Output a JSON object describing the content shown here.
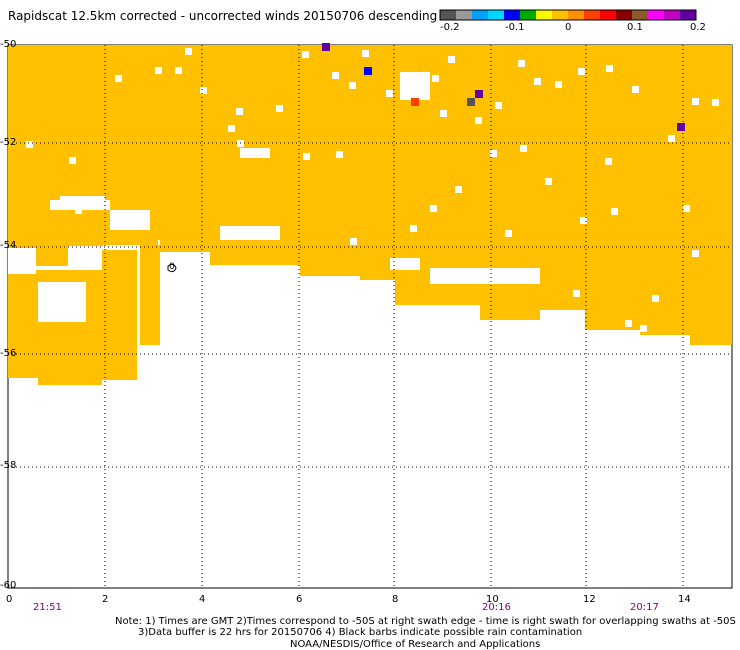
{
  "title": "Rapidscat 12.5km corrected - uncorrected winds 20150706 descending",
  "colorbar": {
    "colors": [
      "#555555",
      "#999999",
      "#00a0ff",
      "#00d8ff",
      "#0000ff",
      "#00aa00",
      "#f8f800",
      "#ffc000",
      "#ff9000",
      "#ff4000",
      "#ff0000",
      "#880000",
      "#8b5a2b",
      "#ff00ff",
      "#c000c0",
      "#6000a0"
    ],
    "labels": [
      "-0.2",
      "-0.1",
      "0",
      "0.1",
      "0.2"
    ]
  },
  "axes": {
    "x_ticks": [
      "0",
      "2",
      "4",
      "6",
      "8",
      "10",
      "12",
      "14"
    ],
    "y_ticks": [
      "-50",
      "-52",
      "-54",
      "-56",
      "-58",
      "-60"
    ],
    "time_labels": [
      "21:51",
      "20:16",
      "20:17"
    ]
  },
  "contour_label": "0",
  "field_color": "#ffc000",
  "notes": [
    "Note: 1) Times are GMT 2)Times correspond to -50S at right swath edge - time is right swath for overlapping swaths at -50S",
    "3)Data buffer is 22 hrs for 20150706 4) Black barbs indicate possible rain contamination",
    "NOAA/NESDIS/Office of Research and Applications"
  ]
}
